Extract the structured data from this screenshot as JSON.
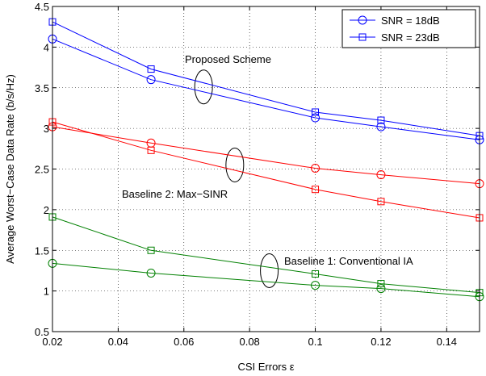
{
  "chart_data": {
    "type": "line",
    "xlabel": "CSI Errors ε",
    "ylabel": "Average Worst−Case Data Rate (b/s/Hz)",
    "xlim": [
      0.02,
      0.15
    ],
    "ylim": [
      0.5,
      4.5
    ],
    "x_ticks": [
      "0.02",
      "0.04",
      "0.06",
      "0.08",
      "0.1",
      "0.12",
      "0.14"
    ],
    "y_ticks": [
      "0.5",
      "1",
      "1.5",
      "2",
      "2.5",
      "3",
      "3.5",
      "4",
      "4.5"
    ],
    "grid": true,
    "legend_position": "top-right",
    "legend": [
      {
        "label": "SNR = 18dB",
        "marker": "circle"
      },
      {
        "label": "SNR = 23dB",
        "marker": "square"
      }
    ],
    "x": [
      0.02,
      0.05,
      0.1,
      0.12,
      0.15
    ],
    "series": [
      {
        "group": "Proposed Scheme",
        "snr": "18dB",
        "marker": "circle",
        "color": "#0000ff",
        "values": [
          4.1,
          3.6,
          3.13,
          3.02,
          2.86
        ]
      },
      {
        "group": "Proposed Scheme",
        "snr": "23dB",
        "marker": "square",
        "color": "#0000ff",
        "values": [
          4.31,
          3.73,
          3.2,
          3.1,
          2.91
        ]
      },
      {
        "group": "Baseline 2: Max−SINR",
        "snr": "18dB",
        "marker": "circle",
        "color": "#ff0000",
        "values": [
          3.02,
          2.82,
          2.51,
          2.43,
          2.32
        ]
      },
      {
        "group": "Baseline 2: Max−SINR",
        "snr": "23dB",
        "marker": "square",
        "color": "#ff0000",
        "values": [
          3.08,
          2.73,
          2.25,
          2.1,
          1.9
        ]
      },
      {
        "group": "Baseline 1: Conventional IA",
        "snr": "18dB",
        "marker": "circle",
        "color": "#008000",
        "values": [
          1.34,
          1.22,
          1.07,
          1.03,
          0.93
        ]
      },
      {
        "group": "Baseline 1: Conventional IA",
        "snr": "23dB",
        "marker": "square",
        "color": "#008000",
        "values": [
          1.91,
          1.5,
          1.21,
          1.09,
          0.98
        ]
      }
    ],
    "annotations": [
      {
        "text": "Proposed Scheme",
        "ellipse_x": 0.066,
        "ellipse_y": 3.51
      },
      {
        "text": "Baseline 2: Max−SINR",
        "ellipse_x": 0.0755,
        "ellipse_y": 2.55
      },
      {
        "text": "Baseline 1: Conventional IA",
        "ellipse_x": 0.086,
        "ellipse_y": 1.25
      }
    ]
  }
}
